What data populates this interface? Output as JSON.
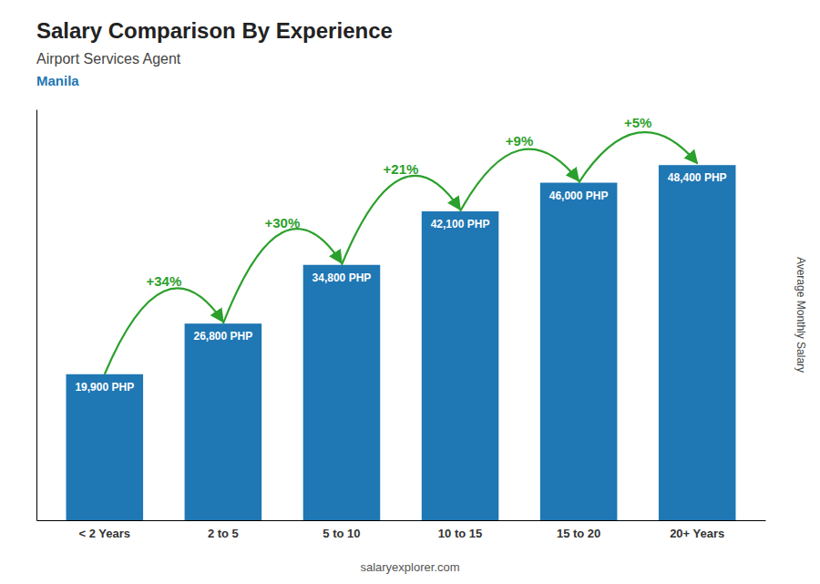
{
  "chart_data": {
    "type": "bar",
    "title": "Salary Comparison By Experience",
    "subtitle": "Airport Services Agent",
    "city": "Manila",
    "ylabel": "Average Monthly Salary",
    "footer": "salaryexplorer.com",
    "categories": [
      "< 2 Years",
      "2 to 5",
      "5 to 10",
      "10 to 15",
      "15 to 20",
      "20+ Years"
    ],
    "values": [
      19900,
      26800,
      34800,
      42100,
      46000,
      48400
    ],
    "value_labels": [
      "19,900 PHP",
      "26,800 PHP",
      "34,800 PHP",
      "42,100 PHP",
      "46,000 PHP",
      "48,400 PHP"
    ],
    "pct_changes": [
      "+34%",
      "+30%",
      "+21%",
      "+9%",
      "+5%"
    ],
    "ylim": [
      0,
      56000
    ],
    "tick_labels": "x",
    "data_labels": true,
    "grid": false
  }
}
